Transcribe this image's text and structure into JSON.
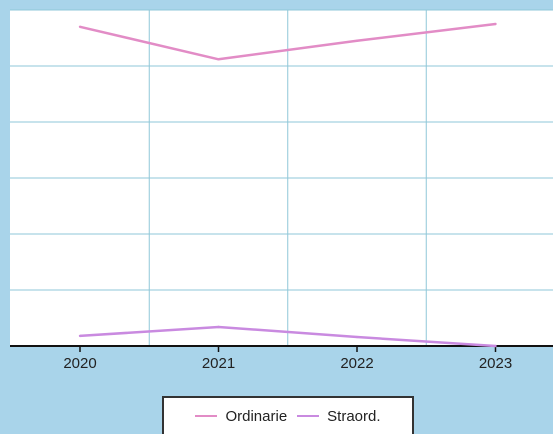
{
  "chart_data": {
    "type": "line",
    "title": "",
    "xlabel": "",
    "ylabel": "",
    "categories": [
      "2020",
      "2021",
      "2022",
      "2023"
    ],
    "ylim": [
      0,
      6
    ],
    "grid": true,
    "legend_position": "bottom-center",
    "series": [
      {
        "name": "Ordinarie",
        "color": "#e28cc6",
        "values": [
          5.7,
          5.12,
          5.45,
          5.75
        ]
      },
      {
        "name": "Straord.",
        "color": "#c98ae0",
        "values": [
          0.18,
          0.34,
          0.16,
          0.0
        ]
      }
    ]
  },
  "colors": {
    "background": "#a9d4ea",
    "plot": "#ffffff",
    "grid": "#8fc7d8",
    "axis": "#111111"
  }
}
